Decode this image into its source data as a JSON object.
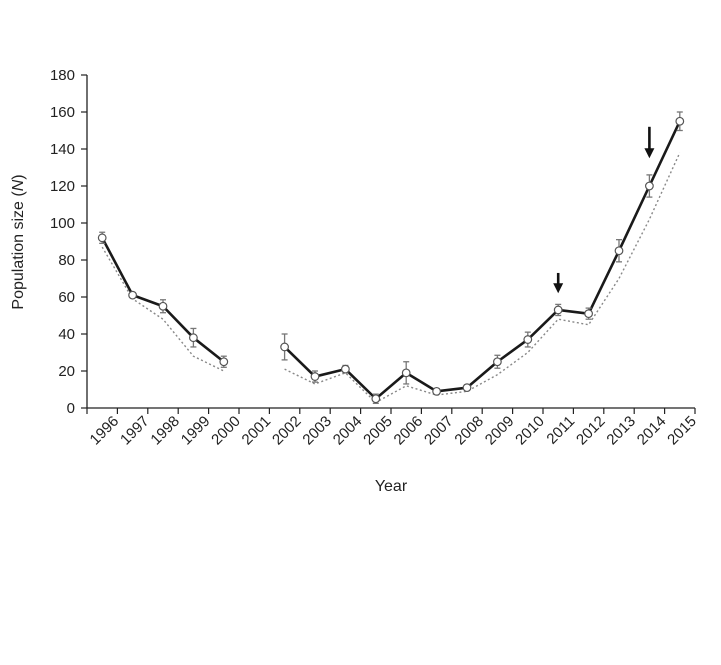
{
  "chart_data": {
    "type": "line",
    "xlabel": "Year",
    "ylabel_parts": [
      "Population size (",
      "N",
      ")"
    ],
    "ylim": [
      0,
      180
    ],
    "yticks": [
      0,
      20,
      40,
      60,
      80,
      100,
      120,
      140,
      160,
      180
    ],
    "categories": [
      "1996",
      "1997",
      "1998",
      "1999",
      "2000",
      "2001",
      "2002",
      "2003",
      "2004",
      "2005",
      "2006",
      "2007",
      "2008",
      "2009",
      "2010",
      "2011",
      "2012",
      "2013",
      "2014",
      "2015"
    ],
    "series": [
      {
        "style": "solid-markers-errorbars",
        "segments": [
          {
            "x": [
              "1996",
              "1997",
              "1998",
              "1999",
              "2000"
            ],
            "y": [
              92,
              61,
              55,
              38,
              25
            ],
            "error": [
              3,
              1,
              3.5,
              5,
              3
            ]
          },
          {
            "x": [
              "2002",
              "2003",
              "2004",
              "2005",
              "2006",
              "2007",
              "2008",
              "2009",
              "2010",
              "2011",
              "2012",
              "2013",
              "2014",
              "2015"
            ],
            "y": [
              33,
              17,
              21,
              5,
              19,
              9,
              11,
              25,
              37,
              53,
              51,
              85,
              120,
              155
            ],
            "error": [
              7,
              3,
              2,
              2.5,
              6,
              1.5,
              1.5,
              3.5,
              4,
              3,
              3,
              6,
              6,
              5
            ]
          }
        ]
      },
      {
        "style": "dotted",
        "segments": [
          {
            "x": [
              "1996",
              "1997",
              "1998",
              "1999",
              "2000"
            ],
            "y": [
              87,
              59,
              48,
              28,
              20
            ]
          },
          {
            "x": [
              "2002",
              "2003",
              "2004",
              "2005",
              "2006",
              "2007",
              "2008",
              "2009",
              "2010",
              "2011",
              "2012",
              "2013",
              "2014",
              "2015"
            ],
            "y": [
              21,
              13,
              19,
              3,
              12,
              7,
              9,
              18,
              30,
              48,
              45,
              70,
              102,
              138
            ]
          }
        ]
      }
    ],
    "annotations": [
      {
        "type": "arrow-down",
        "x": "2011",
        "y_from": 73,
        "y_to": 62
      },
      {
        "type": "arrow-down",
        "x": "2014",
        "y_from": 152,
        "y_to": 135
      }
    ]
  }
}
